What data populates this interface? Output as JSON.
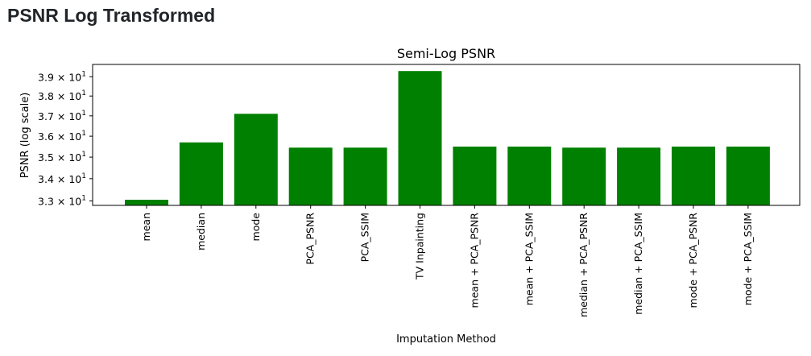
{
  "page": {
    "heading": "PSNR Log Transformed"
  },
  "chart_data": {
    "type": "bar",
    "title": "Semi-Log PSNR",
    "xlabel": "Imputation Method",
    "ylabel": "PSNR (log scale)",
    "yscale": "log",
    "ylim": [
      32.8,
      39.65
    ],
    "yticks": [
      33,
      34,
      35,
      36,
      37,
      38,
      39
    ],
    "ytick_labels": [
      {
        "mantissa": "3.3",
        "base": "10",
        "exp": "1"
      },
      {
        "mantissa": "3.4",
        "base": "10",
        "exp": "1"
      },
      {
        "mantissa": "3.5",
        "base": "10",
        "exp": "1"
      },
      {
        "mantissa": "3.6",
        "base": "10",
        "exp": "1"
      },
      {
        "mantissa": "3.7",
        "base": "10",
        "exp": "1"
      },
      {
        "mantissa": "3.8",
        "base": "10",
        "exp": "1"
      },
      {
        "mantissa": "3.9",
        "base": "10",
        "exp": "1"
      }
    ],
    "categories": [
      "mean",
      "median",
      "mode",
      "PCA_PSNR",
      "PCA_SSIM",
      "TV Inpainting",
      "mean + PCA_PSNR",
      "mean + PCA_SSIM",
      "median + PCA_PSNR",
      "median + PCA_SSIM",
      "mode + PCA_PSNR",
      "mode + PCA_SSIM"
    ],
    "values": [
      33.05,
      35.7,
      37.1,
      35.45,
      35.45,
      39.3,
      35.5,
      35.5,
      35.45,
      35.45,
      35.5,
      35.5
    ],
    "bar_color": "#008000",
    "grid": false,
    "legend": false
  }
}
